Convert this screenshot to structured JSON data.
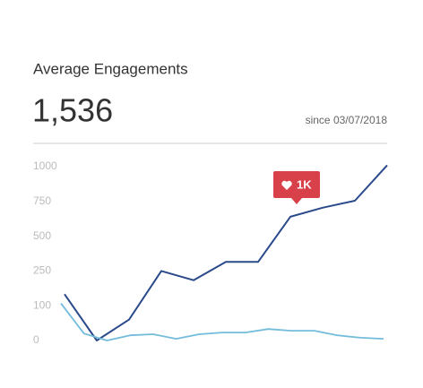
{
  "header": {
    "value": "1,536",
    "since": "since 03/07/2018"
  },
  "chart_data": {
    "type": "line",
    "title": "Average Engagements",
    "ylim": [
      0,
      1000
    ],
    "yticks": [
      0,
      100,
      250,
      500,
      750,
      1000
    ],
    "grid": false,
    "annotation": "1K",
    "series": [
      {
        "name": null,
        "color": "#2b4a8b",
        "values": [
          150,
          0,
          60,
          250,
          210,
          315,
          315,
          640,
          705,
          755,
          1010
        ]
      },
      {
        "name": null,
        "color": "#74bcdc",
        "values": [
          110,
          20,
          0,
          15,
          18,
          5,
          18,
          23,
          23,
          33,
          28,
          28,
          15,
          8,
          5
        ]
      }
    ]
  }
}
